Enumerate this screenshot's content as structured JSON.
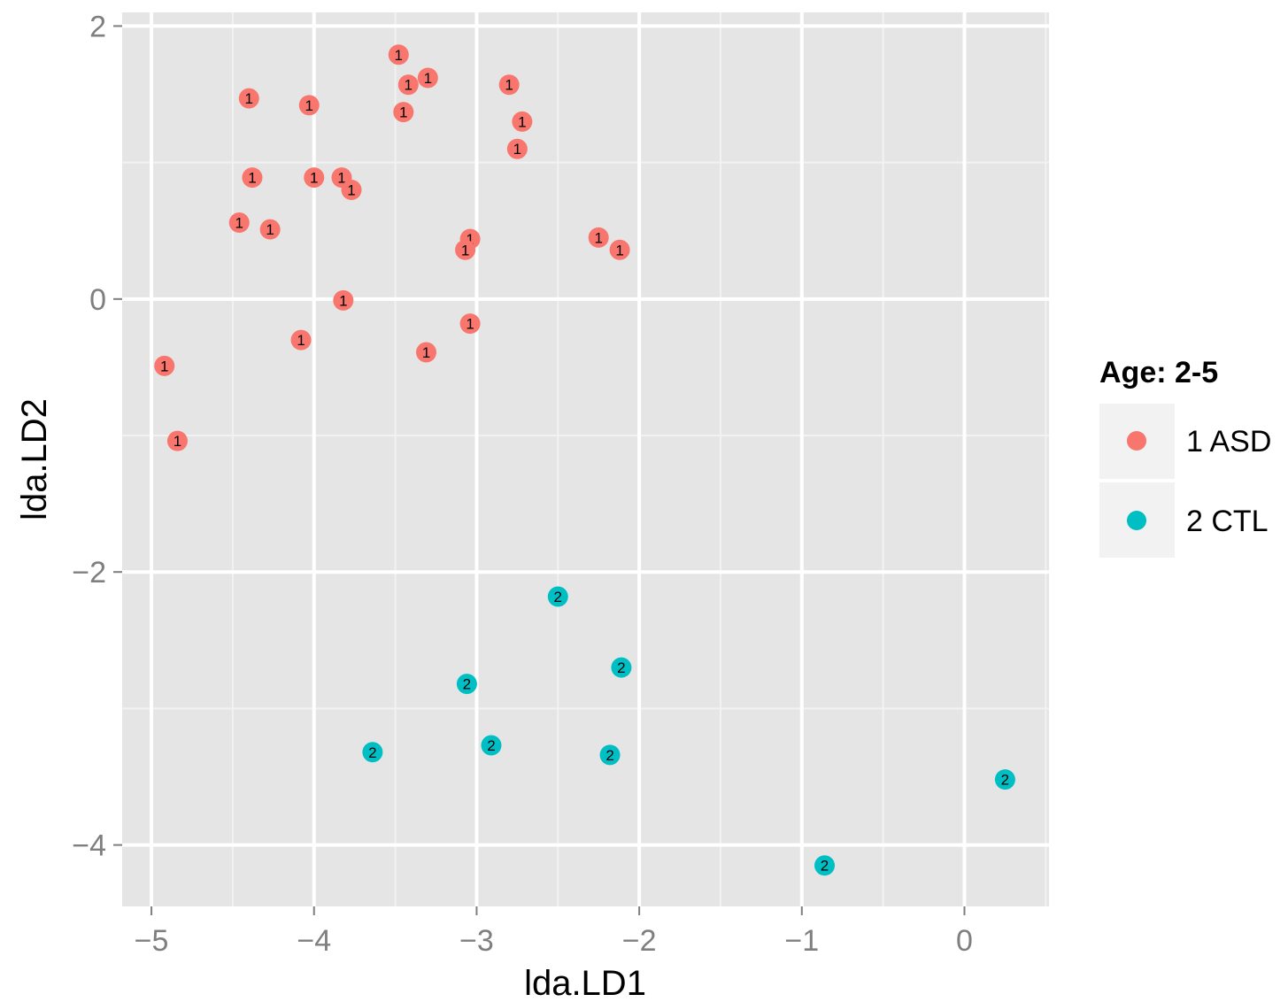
{
  "chart_data": {
    "type": "scatter",
    "title": "",
    "xlabel": "lda.LD1",
    "ylabel": "lda.LD2",
    "xlim": [
      -5.18,
      0.52
    ],
    "ylim": [
      -4.45,
      2.1
    ],
    "x_ticks": [
      -5,
      -4,
      -3,
      -2,
      -1,
      0
    ],
    "y_ticks": [
      -4,
      -2,
      0,
      2
    ],
    "x_tick_labels": [
      "−5",
      "−4",
      "−3",
      "−2",
      "−1",
      "0"
    ],
    "y_tick_labels": [
      "−4",
      "−2",
      "0",
      "2"
    ],
    "grid": true,
    "legend": {
      "title": "Age: 2-5",
      "placement": "right",
      "entries": [
        "1 ASD",
        "2 CTL"
      ]
    },
    "series": [
      {
        "name": "1 ASD",
        "color": "#F8766D",
        "point_label": "1",
        "points": [
          [
            -3.48,
            1.79
          ],
          [
            -3.42,
            1.57
          ],
          [
            -3.3,
            1.62
          ],
          [
            -2.8,
            1.57
          ],
          [
            -4.4,
            1.47
          ],
          [
            -4.03,
            1.42
          ],
          [
            -3.45,
            1.37
          ],
          [
            -2.72,
            1.3
          ],
          [
            -2.75,
            1.1
          ],
          [
            -4.38,
            0.89
          ],
          [
            -4.0,
            0.89
          ],
          [
            -3.83,
            0.89
          ],
          [
            -3.77,
            0.8
          ],
          [
            -4.46,
            0.56
          ],
          [
            -4.27,
            0.51
          ],
          [
            -3.04,
            0.44
          ],
          [
            -3.07,
            0.36
          ],
          [
            -2.25,
            0.45
          ],
          [
            -2.12,
            0.36
          ],
          [
            -3.82,
            -0.01
          ],
          [
            -3.04,
            -0.18
          ],
          [
            -4.08,
            -0.3
          ],
          [
            -3.31,
            -0.39
          ],
          [
            -4.92,
            -0.49
          ],
          [
            -4.84,
            -1.04
          ]
        ]
      },
      {
        "name": "2 CTL",
        "color": "#00BFC4",
        "point_label": "2",
        "points": [
          [
            -2.5,
            -2.18
          ],
          [
            -2.11,
            -2.7
          ],
          [
            -3.06,
            -2.82
          ],
          [
            -2.91,
            -3.27
          ],
          [
            -3.64,
            -3.32
          ],
          [
            -2.18,
            -3.34
          ],
          [
            0.25,
            -3.52
          ],
          [
            -0.86,
            -4.15
          ]
        ]
      }
    ]
  }
}
